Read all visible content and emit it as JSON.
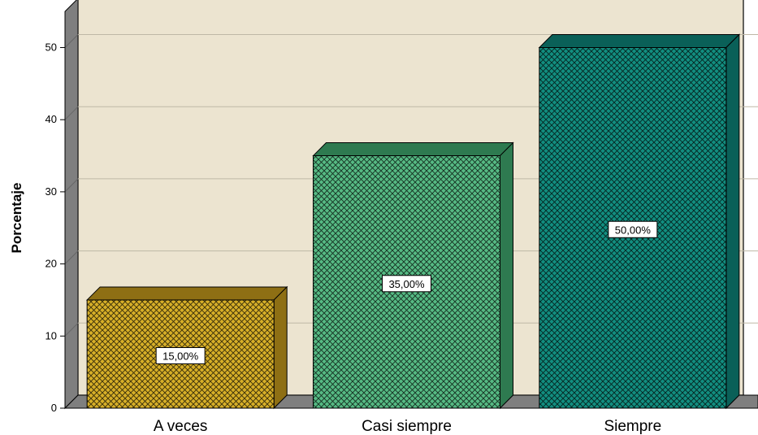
{
  "chart_data": {
    "type": "bar",
    "title": "",
    "xlabel": "",
    "ylabel": "Porcentaje",
    "ylim": [
      0,
      55
    ],
    "yticks": [
      0,
      10,
      20,
      30,
      40,
      50
    ],
    "grid": true,
    "categories": [
      "A veces",
      "Casi siempre",
      "Siempre"
    ],
    "values": [
      15,
      35,
      50
    ],
    "data_labels": [
      "15,00%",
      "35,00%",
      "50,00%"
    ],
    "bar_colors": [
      "#D7AF28",
      "#56BA84",
      "#128E80"
    ],
    "bar_side_colors": [
      "#8E6F14",
      "#2E7A50",
      "#0A6058"
    ],
    "plot_background": "#ECE4D0",
    "floor_color": "#7F7F7F"
  }
}
